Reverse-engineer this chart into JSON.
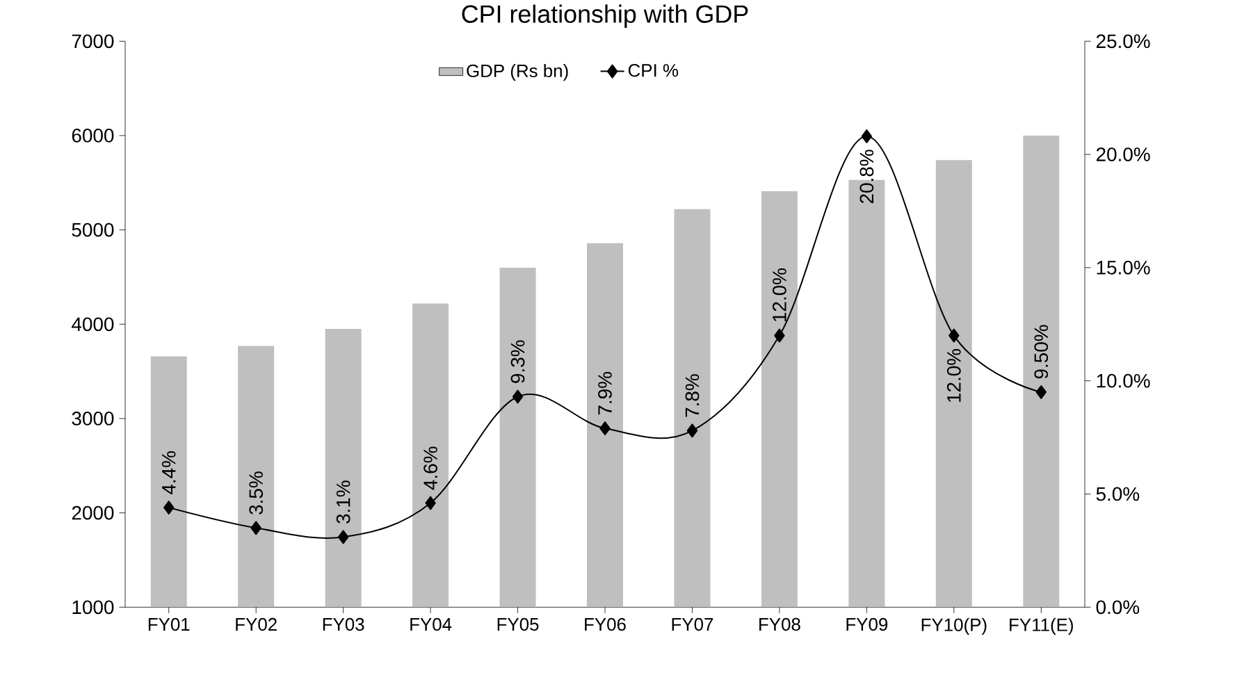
{
  "chart_data": {
    "type": "bar",
    "title": "CPI relationship with GDP",
    "categories": [
      "FY01",
      "FY02",
      "FY03",
      "FY04",
      "FY05",
      "FY06",
      "FY07",
      "FY08",
      "FY09",
      "FY10(P)",
      "FY11(E)"
    ],
    "series": [
      {
        "name": "GDP (Rs bn)",
        "color": "#bfbfbf",
        "values": [
          3660,
          3770,
          3950,
          4220,
          4600,
          4860,
          5220,
          5410,
          5530,
          5740,
          6000
        ]
      },
      {
        "name": "CPI %",
        "type": "line",
        "axis": "y2",
        "color": "#000000",
        "marker": "diamond",
        "line_style": "solid",
        "values": [
          4.4,
          3.5,
          3.1,
          4.6,
          9.3,
          7.9,
          7.8,
          12.0,
          20.8,
          12.0,
          9.5
        ],
        "value_labels": [
          "4.4%",
          "3.5%",
          "3.1%",
          "4.6%",
          "9.3%",
          "7.9%",
          "7.8%",
          "12.0%",
          "20.8%",
          "12.0%",
          "9.50%"
        ]
      }
    ],
    "ylim": [
      1000,
      7000
    ],
    "yticks": [
      1000,
      2000,
      3000,
      4000,
      5000,
      6000,
      7000
    ],
    "y2lim": [
      0,
      25
    ],
    "y2ticks": [
      {
        "value": 0,
        "label": "0.0%"
      },
      {
        "value": 5,
        "label": "5.0%"
      },
      {
        "value": 10,
        "label": "10.0%"
      },
      {
        "value": 15,
        "label": "15.0%"
      },
      {
        "value": 20,
        "label": "20.0%"
      },
      {
        "value": 25,
        "label": "25.0%"
      }
    ],
    "grid": false,
    "legend": "top"
  }
}
